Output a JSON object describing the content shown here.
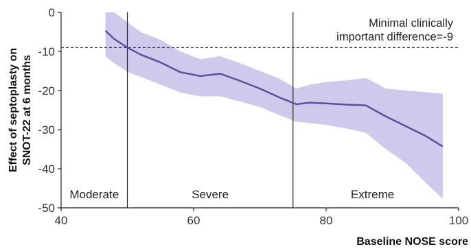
{
  "chart_data": {
    "type": "line",
    "xlabel": "Baseline NOSE score",
    "ylabel_line1": "Effect of septoplasty on",
    "ylabel_line2": "SNOT-22 at 6 months",
    "xlim": [
      40,
      100
    ],
    "ylim": [
      -50,
      0
    ],
    "x_ticks": [
      40,
      60,
      80,
      100
    ],
    "y_ticks": [
      0,
      -10,
      -20,
      -30,
      -40,
      -50
    ],
    "reference_line": {
      "y": -9,
      "style": "dashed"
    },
    "annotation_line1": "Minimal clinically",
    "annotation_line2": "important difference=-9",
    "region_boundaries": [
      50,
      75
    ],
    "regions": [
      {
        "label": "Moderate",
        "x": 45
      },
      {
        "label": "Severe",
        "x": 62.5
      },
      {
        "label": "Extreme",
        "x": 87
      }
    ],
    "series": [
      {
        "x": [
          46.7,
          48,
          50,
          52,
          55,
          58,
          61,
          64,
          67,
          70,
          73,
          75.5,
          77.5,
          80,
          83,
          86,
          89,
          92,
          95,
          97.6
        ],
        "y": [
          -4.7,
          -6.8,
          -9.0,
          -10.8,
          -12.8,
          -15.3,
          -16.3,
          -15.7,
          -17.5,
          -19.5,
          -21.8,
          -23.5,
          -23.1,
          -23.3,
          -23.6,
          -23.8,
          -26.6,
          -29.1,
          -31.6,
          -34.3
        ],
        "upper": [
          2.0,
          0.0,
          -2.5,
          -5.0,
          -7.0,
          -10.0,
          -12.0,
          -11.2,
          -13.0,
          -15.0,
          -17.0,
          -19.5,
          -18.5,
          -17.8,
          -17.4,
          -16.8,
          -19.5,
          -20.0,
          -20.4,
          -20.8
        ],
        "lower": [
          -11.3,
          -13.0,
          -15.2,
          -16.5,
          -18.5,
          -20.5,
          -21.5,
          -21.5,
          -22.8,
          -24.2,
          -26.3,
          -28.0,
          -28.3,
          -28.8,
          -29.7,
          -30.8,
          -35.0,
          -38.5,
          -43.5,
          -47.7
        ]
      }
    ],
    "colors": {
      "line": "#5b4ea0",
      "band": "#cfcaeb",
      "axis": "#222222"
    }
  }
}
